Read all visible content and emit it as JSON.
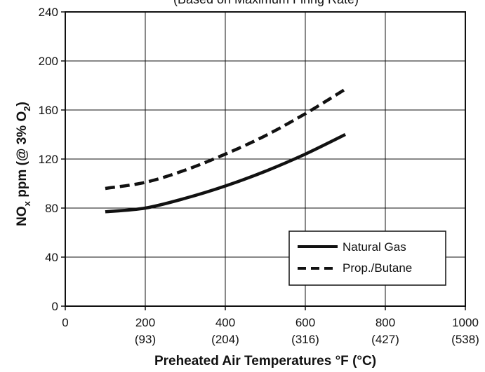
{
  "chart_data": {
    "type": "line",
    "title": "(Based on Maximum Firing Rate)",
    "xlabel": "Preheated Air Temperatures °F (°C)",
    "ylabel": "NOx ppm (@ 3% O2)",
    "ylabel_parts": {
      "a": "NO",
      "b": "x",
      "c": " ppm (@ 3% O",
      "d": "2",
      "e": ")"
    },
    "xlim": [
      0,
      1000
    ],
    "ylim": [
      0,
      240
    ],
    "xticks": [
      0,
      200,
      400,
      600,
      800,
      1000
    ],
    "xtick_labels": [
      "0",
      "200",
      "400",
      "600",
      "800",
      "1000"
    ],
    "xtick_sublabels": [
      "",
      "(93)",
      "(204)",
      "(316)",
      "(427)",
      "(538)"
    ],
    "yticks": [
      0,
      40,
      80,
      120,
      160,
      200,
      240
    ],
    "ytick_labels": [
      "0",
      "40",
      "80",
      "120",
      "160",
      "200",
      "240"
    ],
    "grid": true,
    "legend_position": "bottom-right",
    "series": [
      {
        "name": "Natural Gas",
        "style": "solid",
        "color": "#111111",
        "x": [
          100,
          200,
          300,
          400,
          500,
          600,
          700
        ],
        "y": [
          77,
          80,
          88,
          98,
          110,
          124,
          140
        ]
      },
      {
        "name": "Prop./Butane",
        "style": "dashed",
        "color": "#111111",
        "x": [
          100,
          200,
          300,
          400,
          500,
          600,
          700
        ],
        "y": [
          96,
          101,
          111,
          124,
          139,
          157,
          177
        ]
      }
    ]
  }
}
